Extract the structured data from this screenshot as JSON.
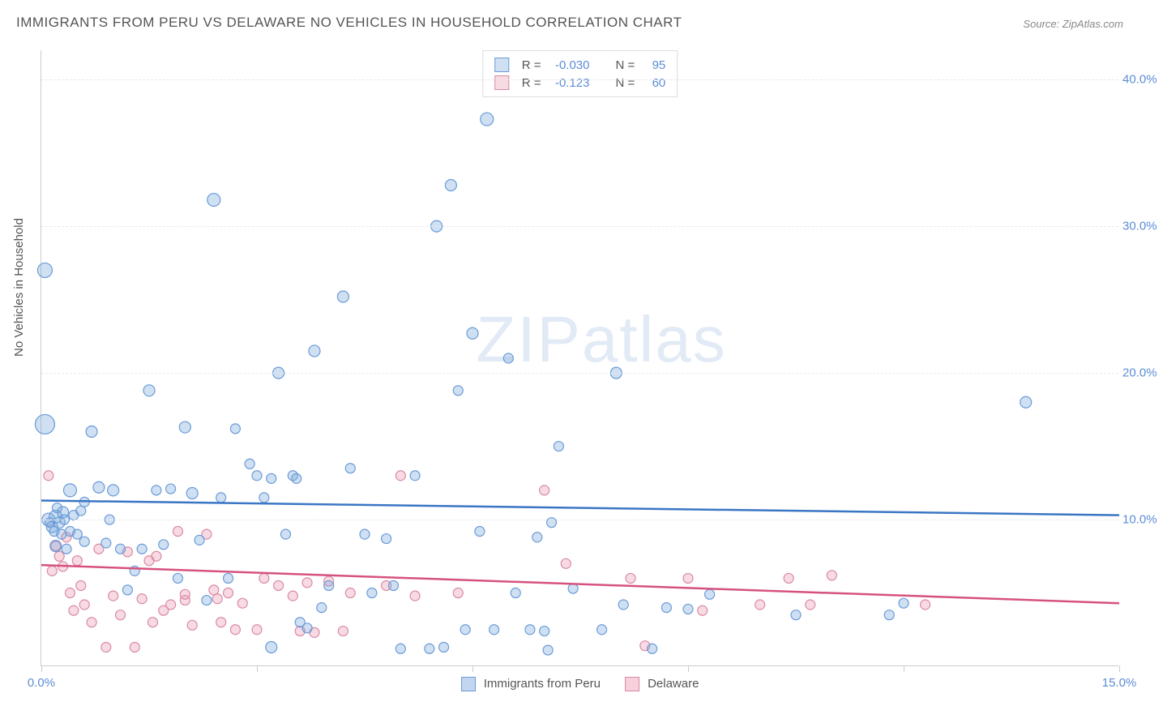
{
  "title": "IMMIGRANTS FROM PERU VS DELAWARE NO VEHICLES IN HOUSEHOLD CORRELATION CHART",
  "source_label": "Source: ",
  "source_value": "ZipAtlas.com",
  "y_axis_label": "No Vehicles in Household",
  "watermark_bold": "ZIP",
  "watermark_light": "atlas",
  "chart": {
    "type": "scatter",
    "xlim": [
      0,
      15
    ],
    "ylim": [
      0,
      42
    ],
    "x_ticks": [
      0,
      3,
      6,
      9,
      12,
      15
    ],
    "x_tick_labels": [
      "0.0%",
      "",
      "",
      "",
      "",
      "15.0%"
    ],
    "y_ticks": [
      10,
      20,
      30,
      40
    ],
    "y_tick_labels": [
      "10.0%",
      "20.0%",
      "30.0%",
      "40.0%"
    ],
    "background_color": "#ffffff",
    "grid_color": "#e8e8e8",
    "axis_color": "#cccccc",
    "tick_label_color": "#5b8dd6"
  },
  "series": [
    {
      "name": "Immigrants from Peru",
      "fill": "rgba(120,165,220,0.35)",
      "stroke": "#6a9bd8",
      "line_color": "#3a76c4",
      "line_width": 2.5,
      "trend": {
        "y_at_x0": 11.3,
        "y_at_xmax": 10.3
      },
      "R_label": "R = ",
      "R_value": "-0.030",
      "N_label": "N = ",
      "N_value": "95",
      "points": [
        {
          "x": 0.05,
          "y": 27.0,
          "r": 9
        },
        {
          "x": 0.05,
          "y": 16.5,
          "r": 12
        },
        {
          "x": 0.1,
          "y": 10.0,
          "r": 8
        },
        {
          "x": 0.15,
          "y": 9.5,
          "r": 7
        },
        {
          "x": 0.2,
          "y": 10.2,
          "r": 8
        },
        {
          "x": 0.2,
          "y": 8.2,
          "r": 7
        },
        {
          "x": 0.25,
          "y": 9.8,
          "r": 7
        },
        {
          "x": 0.3,
          "y": 10.5,
          "r": 7
        },
        {
          "x": 0.35,
          "y": 8.0,
          "r": 6
        },
        {
          "x": 0.4,
          "y": 12.0,
          "r": 8
        },
        {
          "x": 0.5,
          "y": 9.0,
          "r": 6
        },
        {
          "x": 0.6,
          "y": 8.5,
          "r": 6
        },
        {
          "x": 0.7,
          "y": 16.0,
          "r": 7
        },
        {
          "x": 0.8,
          "y": 12.2,
          "r": 7
        },
        {
          "x": 0.9,
          "y": 8.4,
          "r": 6
        },
        {
          "x": 0.95,
          "y": 10.0,
          "r": 6
        },
        {
          "x": 1.0,
          "y": 12.0,
          "r": 7
        },
        {
          "x": 1.1,
          "y": 8.0,
          "r": 6
        },
        {
          "x": 1.2,
          "y": 5.2,
          "r": 6
        },
        {
          "x": 1.3,
          "y": 6.5,
          "r": 6
        },
        {
          "x": 1.4,
          "y": 8.0,
          "r": 6
        },
        {
          "x": 1.5,
          "y": 18.8,
          "r": 7
        },
        {
          "x": 1.6,
          "y": 12.0,
          "r": 6
        },
        {
          "x": 1.7,
          "y": 8.3,
          "r": 6
        },
        {
          "x": 1.8,
          "y": 12.1,
          "r": 6
        },
        {
          "x": 1.9,
          "y": 6.0,
          "r": 6
        },
        {
          "x": 2.0,
          "y": 16.3,
          "r": 7
        },
        {
          "x": 2.1,
          "y": 11.8,
          "r": 7
        },
        {
          "x": 2.2,
          "y": 8.6,
          "r": 6
        },
        {
          "x": 2.3,
          "y": 4.5,
          "r": 6
        },
        {
          "x": 2.4,
          "y": 31.8,
          "r": 8
        },
        {
          "x": 2.5,
          "y": 11.5,
          "r": 6
        },
        {
          "x": 2.6,
          "y": 6.0,
          "r": 6
        },
        {
          "x": 2.7,
          "y": 16.2,
          "r": 6
        },
        {
          "x": 2.9,
          "y": 13.8,
          "r": 6
        },
        {
          "x": 3.0,
          "y": 13.0,
          "r": 6
        },
        {
          "x": 3.1,
          "y": 11.5,
          "r": 6
        },
        {
          "x": 3.2,
          "y": 12.8,
          "r": 6
        },
        {
          "x": 3.2,
          "y": 1.3,
          "r": 7
        },
        {
          "x": 3.3,
          "y": 20.0,
          "r": 7
        },
        {
          "x": 3.4,
          "y": 9.0,
          "r": 6
        },
        {
          "x": 3.5,
          "y": 13.0,
          "r": 6
        },
        {
          "x": 3.55,
          "y": 12.8,
          "r": 6
        },
        {
          "x": 3.6,
          "y": 3.0,
          "r": 6
        },
        {
          "x": 3.7,
          "y": 2.6,
          "r": 6
        },
        {
          "x": 3.8,
          "y": 21.5,
          "r": 7
        },
        {
          "x": 3.9,
          "y": 4.0,
          "r": 6
        },
        {
          "x": 4.0,
          "y": 5.5,
          "r": 6
        },
        {
          "x": 4.2,
          "y": 25.2,
          "r": 7
        },
        {
          "x": 4.3,
          "y": 13.5,
          "r": 6
        },
        {
          "x": 4.5,
          "y": 9.0,
          "r": 6
        },
        {
          "x": 4.6,
          "y": 5.0,
          "r": 6
        },
        {
          "x": 4.8,
          "y": 8.7,
          "r": 6
        },
        {
          "x": 4.9,
          "y": 5.5,
          "r": 6
        },
        {
          "x": 5.0,
          "y": 1.2,
          "r": 6
        },
        {
          "x": 5.2,
          "y": 13.0,
          "r": 6
        },
        {
          "x": 5.4,
          "y": 1.2,
          "r": 6
        },
        {
          "x": 5.5,
          "y": 30.0,
          "r": 7
        },
        {
          "x": 5.6,
          "y": 1.3,
          "r": 6
        },
        {
          "x": 5.7,
          "y": 32.8,
          "r": 7
        },
        {
          "x": 5.8,
          "y": 18.8,
          "r": 6
        },
        {
          "x": 5.9,
          "y": 2.5,
          "r": 6
        },
        {
          "x": 6.0,
          "y": 22.7,
          "r": 7
        },
        {
          "x": 6.1,
          "y": 9.2,
          "r": 6
        },
        {
          "x": 6.2,
          "y": 37.3,
          "r": 8
        },
        {
          "x": 6.3,
          "y": 2.5,
          "r": 6
        },
        {
          "x": 6.5,
          "y": 21.0,
          "r": 6
        },
        {
          "x": 6.6,
          "y": 5.0,
          "r": 6
        },
        {
          "x": 6.8,
          "y": 2.5,
          "r": 6
        },
        {
          "x": 6.9,
          "y": 8.8,
          "r": 6
        },
        {
          "x": 7.0,
          "y": 2.4,
          "r": 6
        },
        {
          "x": 7.05,
          "y": 1.1,
          "r": 6
        },
        {
          "x": 7.1,
          "y": 9.8,
          "r": 6
        },
        {
          "x": 7.2,
          "y": 15.0,
          "r": 6
        },
        {
          "x": 7.4,
          "y": 5.3,
          "r": 6
        },
        {
          "x": 7.8,
          "y": 2.5,
          "r": 6
        },
        {
          "x": 8.0,
          "y": 20.0,
          "r": 7
        },
        {
          "x": 8.1,
          "y": 4.2,
          "r": 6
        },
        {
          "x": 8.5,
          "y": 1.2,
          "r": 6
        },
        {
          "x": 8.7,
          "y": 4.0,
          "r": 6
        },
        {
          "x": 9.0,
          "y": 3.9,
          "r": 6
        },
        {
          "x": 9.3,
          "y": 4.9,
          "r": 6
        },
        {
          "x": 10.5,
          "y": 3.5,
          "r": 6
        },
        {
          "x": 11.8,
          "y": 3.5,
          "r": 6
        },
        {
          "x": 12.0,
          "y": 4.3,
          "r": 6
        },
        {
          "x": 13.7,
          "y": 18.0,
          "r": 7
        },
        {
          "x": 0.12,
          "y": 9.8,
          "r": 6
        },
        {
          "x": 0.18,
          "y": 9.2,
          "r": 6
        },
        {
          "x": 0.22,
          "y": 10.8,
          "r": 6
        },
        {
          "x": 0.28,
          "y": 9.0,
          "r": 6
        },
        {
          "x": 0.32,
          "y": 10.0,
          "r": 6
        },
        {
          "x": 0.4,
          "y": 9.2,
          "r": 6
        },
        {
          "x": 0.45,
          "y": 10.3,
          "r": 6
        },
        {
          "x": 0.55,
          "y": 10.6,
          "r": 6
        },
        {
          "x": 0.6,
          "y": 11.2,
          "r": 6
        }
      ]
    },
    {
      "name": "Delaware",
      "fill": "rgba(235,150,175,0.35)",
      "stroke": "#d98aa5",
      "line_color": "#d6527e",
      "line_width": 2.5,
      "trend": {
        "y_at_x0": 6.9,
        "y_at_xmax": 4.3
      },
      "R_label": "R = ",
      "R_value": "-0.123",
      "N_label": "N = ",
      "N_value": "60",
      "points": [
        {
          "x": 0.1,
          "y": 13.0,
          "r": 6
        },
        {
          "x": 0.15,
          "y": 6.5,
          "r": 6
        },
        {
          "x": 0.2,
          "y": 8.2,
          "r": 6
        },
        {
          "x": 0.25,
          "y": 7.5,
          "r": 6
        },
        {
          "x": 0.3,
          "y": 6.8,
          "r": 6
        },
        {
          "x": 0.35,
          "y": 8.8,
          "r": 6
        },
        {
          "x": 0.4,
          "y": 5.0,
          "r": 6
        },
        {
          "x": 0.5,
          "y": 7.2,
          "r": 6
        },
        {
          "x": 0.6,
          "y": 4.2,
          "r": 6
        },
        {
          "x": 0.7,
          "y": 3.0,
          "r": 6
        },
        {
          "x": 0.8,
          "y": 8.0,
          "r": 6
        },
        {
          "x": 0.9,
          "y": 1.3,
          "r": 6
        },
        {
          "x": 1.0,
          "y": 4.8,
          "r": 6
        },
        {
          "x": 1.1,
          "y": 3.5,
          "r": 6
        },
        {
          "x": 1.2,
          "y": 7.8,
          "r": 6
        },
        {
          "x": 1.3,
          "y": 1.3,
          "r": 6
        },
        {
          "x": 1.4,
          "y": 4.6,
          "r": 6
        },
        {
          "x": 1.5,
          "y": 7.2,
          "r": 6
        },
        {
          "x": 1.55,
          "y": 3.0,
          "r": 6
        },
        {
          "x": 1.6,
          "y": 7.5,
          "r": 6
        },
        {
          "x": 1.7,
          "y": 3.8,
          "r": 6
        },
        {
          "x": 1.8,
          "y": 4.2,
          "r": 6
        },
        {
          "x": 1.9,
          "y": 9.2,
          "r": 6
        },
        {
          "x": 2.0,
          "y": 4.5,
          "r": 6
        },
        {
          "x": 2.0,
          "y": 4.9,
          "r": 6
        },
        {
          "x": 2.1,
          "y": 2.8,
          "r": 6
        },
        {
          "x": 2.3,
          "y": 9.0,
          "r": 6
        },
        {
          "x": 2.4,
          "y": 5.2,
          "r": 6
        },
        {
          "x": 2.45,
          "y": 4.6,
          "r": 6
        },
        {
          "x": 2.5,
          "y": 3.0,
          "r": 6
        },
        {
          "x": 2.6,
          "y": 5.0,
          "r": 6
        },
        {
          "x": 2.7,
          "y": 2.5,
          "r": 6
        },
        {
          "x": 2.8,
          "y": 4.3,
          "r": 6
        },
        {
          "x": 3.0,
          "y": 2.5,
          "r": 6
        },
        {
          "x": 3.1,
          "y": 6.0,
          "r": 6
        },
        {
          "x": 3.3,
          "y": 5.5,
          "r": 6
        },
        {
          "x": 3.5,
          "y": 4.8,
          "r": 6
        },
        {
          "x": 3.6,
          "y": 2.4,
          "r": 6
        },
        {
          "x": 3.7,
          "y": 5.7,
          "r": 6
        },
        {
          "x": 3.8,
          "y": 2.3,
          "r": 6
        },
        {
          "x": 4.0,
          "y": 5.8,
          "r": 6
        },
        {
          "x": 4.2,
          "y": 2.4,
          "r": 6
        },
        {
          "x": 4.3,
          "y": 5.0,
          "r": 6
        },
        {
          "x": 4.8,
          "y": 5.5,
          "r": 6
        },
        {
          "x": 5.0,
          "y": 13.0,
          "r": 6
        },
        {
          "x": 5.2,
          "y": 4.8,
          "r": 6
        },
        {
          "x": 5.8,
          "y": 5.0,
          "r": 6
        },
        {
          "x": 7.0,
          "y": 12.0,
          "r": 6
        },
        {
          "x": 7.3,
          "y": 7.0,
          "r": 6
        },
        {
          "x": 8.2,
          "y": 6.0,
          "r": 6
        },
        {
          "x": 8.4,
          "y": 1.4,
          "r": 6
        },
        {
          "x": 9.0,
          "y": 6.0,
          "r": 6
        },
        {
          "x": 9.2,
          "y": 3.8,
          "r": 6
        },
        {
          "x": 10.0,
          "y": 4.2,
          "r": 6
        },
        {
          "x": 10.4,
          "y": 6.0,
          "r": 6
        },
        {
          "x": 10.7,
          "y": 4.2,
          "r": 6
        },
        {
          "x": 11.0,
          "y": 6.2,
          "r": 6
        },
        {
          "x": 12.3,
          "y": 4.2,
          "r": 6
        },
        {
          "x": 0.45,
          "y": 3.8,
          "r": 6
        },
        {
          "x": 0.55,
          "y": 5.5,
          "r": 6
        }
      ]
    }
  ],
  "bottom_legend": [
    {
      "label": "Immigrants from Peru",
      "fill": "rgba(120,165,220,0.45)",
      "stroke": "#6a9bd8"
    },
    {
      "label": "Delaware",
      "fill": "rgba(235,150,175,0.45)",
      "stroke": "#d98aa5"
    }
  ]
}
